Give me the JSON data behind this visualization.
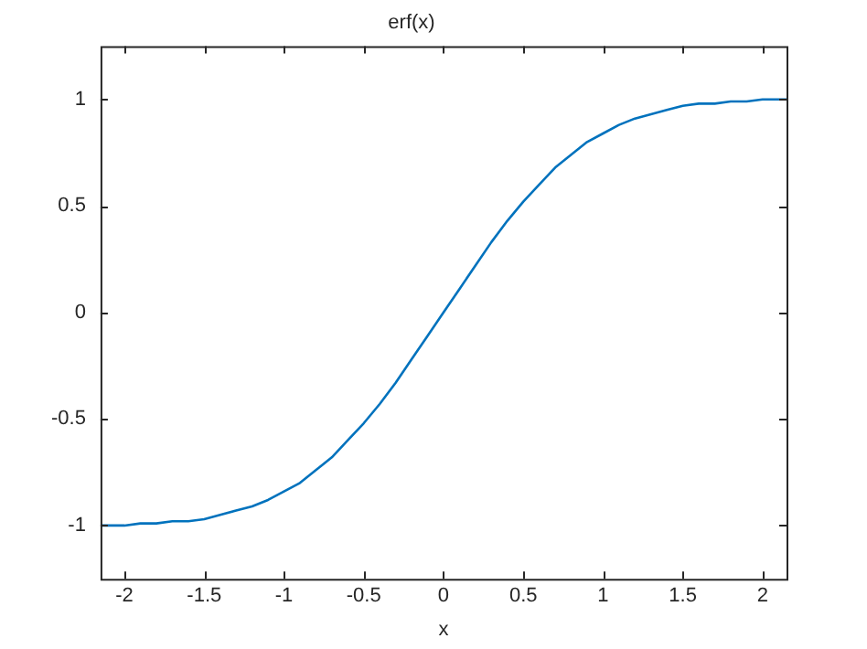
{
  "chart_data": {
    "type": "line",
    "title": "erf(x)",
    "xlabel": "x",
    "x": [
      -2.15,
      -2,
      -1.9,
      -1.8,
      -1.7,
      -1.6,
      -1.5,
      -1.4,
      -1.3,
      -1.2,
      -1.1,
      -1,
      -0.9,
      -0.8,
      -0.7,
      -0.6,
      -0.5,
      -0.4,
      -0.3,
      -0.2,
      -0.1,
      0,
      0.1,
      0.2,
      0.3,
      0.4,
      0.5,
      0.6,
      0.7,
      0.8,
      0.9,
      1,
      1.1,
      1.2,
      1.3,
      1.4,
      1.5,
      1.6,
      1.7,
      1.8,
      1.9,
      2,
      2.15
    ],
    "series": [
      {
        "color": "#0072bd",
        "values": [
          -1.0,
          -1.0,
          -0.99,
          -0.99,
          -0.98,
          -0.98,
          -0.97,
          -0.95,
          -0.93,
          -0.91,
          -0.88,
          -0.84,
          -0.8,
          -0.74,
          -0.68,
          -0.6,
          -0.52,
          -0.43,
          -0.33,
          -0.22,
          -0.11,
          0,
          0.11,
          0.22,
          0.33,
          0.43,
          0.52,
          0.6,
          0.68,
          0.74,
          0.8,
          0.84,
          0.88,
          0.91,
          0.93,
          0.95,
          0.97,
          0.98,
          0.98,
          0.99,
          0.99,
          1.0,
          1.0
        ]
      }
    ],
    "xlim": [
      -2.15,
      2.15
    ],
    "xticks": [
      -2,
      -1.5,
      -1,
      -0.5,
      0,
      0.5,
      1,
      1.5,
      2
    ],
    "ylim": [
      -1.25,
      1.25
    ],
    "yticks": [
      -1,
      -0.5,
      0,
      0.5,
      1
    ],
    "grid": false,
    "legend": false,
    "marker": "none",
    "line_style": "solid"
  }
}
